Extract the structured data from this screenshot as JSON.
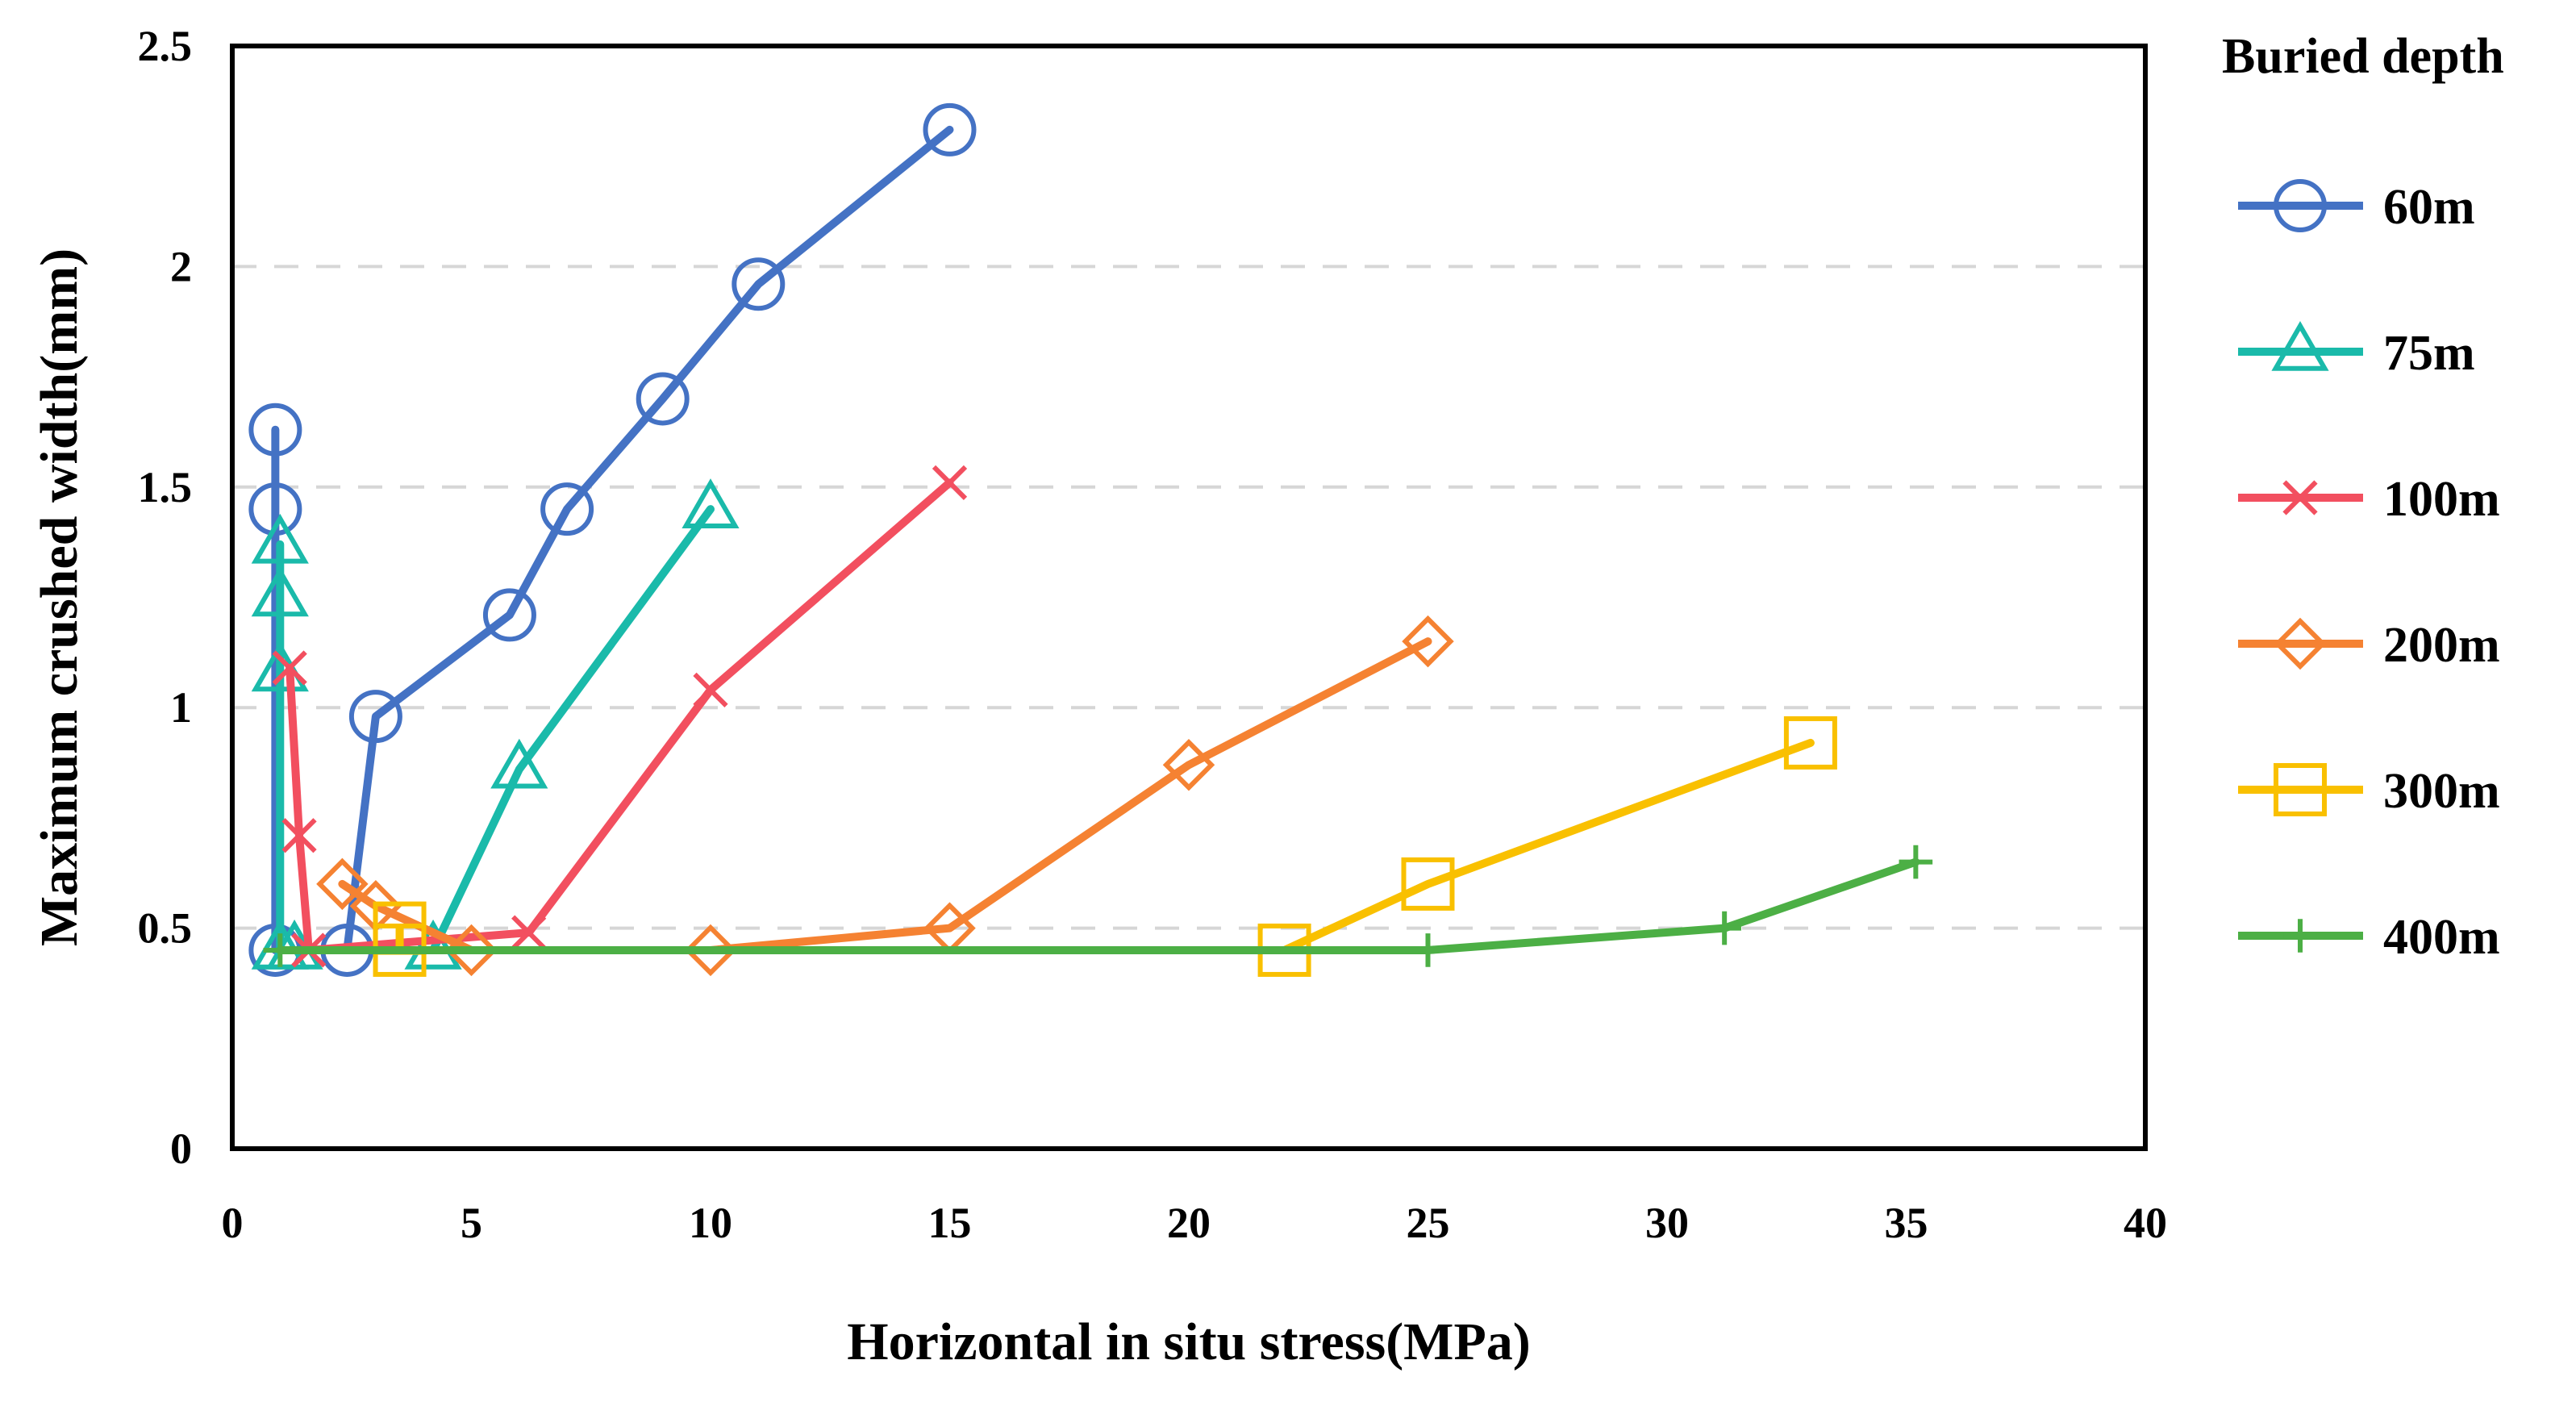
{
  "chart_data": {
    "type": "line",
    "title": "",
    "xlabel": "Horizontal in situ stress(MPa)",
    "ylabel": "Maximum crushed width(mm)",
    "xlim": [
      0,
      40
    ],
    "ylim": [
      0,
      2.5
    ],
    "xticks": [
      0,
      5,
      10,
      15,
      20,
      25,
      30,
      35,
      40
    ],
    "yticks": [
      0,
      0.5,
      1,
      1.5,
      2,
      2.5
    ],
    "xtick_labels": [
      "0",
      "5",
      "10",
      "15",
      "20",
      "25",
      "30",
      "35",
      "40"
    ],
    "ytick_labels": [
      "0",
      "0.5",
      "1",
      "1.5",
      "2",
      "2.5"
    ],
    "grid": "horizontal dashed",
    "legend_title": "Buried depth",
    "legend_position": "right",
    "series": [
      {
        "name": "60m",
        "color": "#4472C4",
        "marker": "circle",
        "x": [
          0.9,
          0.9,
          0.9,
          2.4,
          3.0,
          5.8,
          7.0,
          9.0,
          11.0,
          15.0
        ],
        "y": [
          1.63,
          1.45,
          0.45,
          0.45,
          0.98,
          1.21,
          1.45,
          1.7,
          1.96,
          2.31
        ]
      },
      {
        "name": "75m",
        "color": "#1ABAAA",
        "marker": "triangle",
        "x": [
          1.0,
          1.0,
          1.0,
          1.0,
          1.3,
          4.2,
          6.0,
          10.0
        ],
        "y": [
          1.37,
          1.25,
          1.08,
          0.45,
          0.45,
          0.45,
          0.86,
          1.45
        ]
      },
      {
        "name": "100m",
        "color": "#F24F5F",
        "marker": "x",
        "x": [
          1.2,
          1.4,
          1.6,
          6.2,
          10.0,
          15.0
        ],
        "y": [
          1.09,
          0.71,
          0.45,
          0.49,
          1.04,
          1.51
        ]
      },
      {
        "name": "200m",
        "color": "#F58232",
        "marker": "diamond",
        "x": [
          2.3,
          3.0,
          5.0,
          10.0,
          15.0,
          20.0,
          25.0
        ],
        "y": [
          0.6,
          0.55,
          0.45,
          0.45,
          0.5,
          0.87,
          1.15
        ]
      },
      {
        "name": "300m",
        "color": "#F9C000",
        "marker": "square",
        "x": [
          3.5,
          3.5,
          22.0,
          25.0,
          33.0
        ],
        "y": [
          0.5,
          0.45,
          0.45,
          0.6,
          0.92
        ]
      },
      {
        "name": "400m",
        "color": "#4CAF45",
        "marker": "plus",
        "x": [
          1.0,
          25.0,
          31.2,
          35.2
        ],
        "y": [
          0.45,
          0.45,
          0.5,
          0.65
        ]
      }
    ]
  }
}
